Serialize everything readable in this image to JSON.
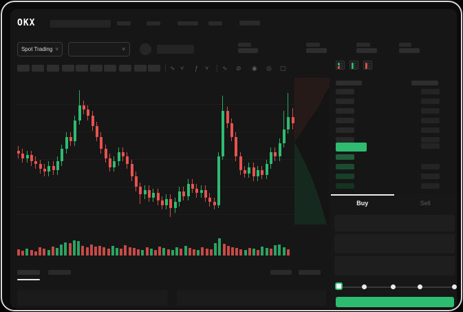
{
  "brand": {
    "logo_text": "OKX"
  },
  "subheader": {
    "market_selector_label": "Spot Trading",
    "chevron_glyph": "˅"
  },
  "toolbar": {
    "icons": [
      {
        "name": "candle-style-icon",
        "glyph": "∿"
      },
      {
        "name": "chevron-down-icon",
        "glyph": "˅"
      },
      {
        "name": "indicators-icon",
        "glyph": "ƒ"
      },
      {
        "name": "chevron-down-icon",
        "glyph": "˅"
      },
      {
        "name": "line-tool-icon",
        "glyph": "∿"
      },
      {
        "name": "compare-icon",
        "glyph": "⊘"
      },
      {
        "name": "camera-icon",
        "glyph": "◉"
      },
      {
        "name": "alerts-icon",
        "glyph": "◎"
      },
      {
        "name": "fullscreen-icon",
        "glyph": "▢"
      }
    ]
  },
  "order_book": {
    "ask_row_count": 6,
    "bid_row_count": 4,
    "bid_level_colors": [
      "#215f3c",
      "#1b4c31",
      "#184028",
      "#143321"
    ],
    "bid_right_bar_rows": [
      1,
      2,
      3
    ]
  },
  "order_panel": {
    "tabs": {
      "buy_label": "Buy",
      "sell_label": "Sell"
    },
    "slider": {
      "selected_index": 0,
      "mark_count": 5
    }
  },
  "colors": {
    "up_green": "#2ebd70",
    "down_red": "#e8534f",
    "cta_green": "#2ebd70",
    "last_price_highlight": "#2ebd70"
  },
  "chart_data": {
    "type": "candlestick",
    "title": "",
    "price_scale": [
      0,
      100
    ],
    "grid": true,
    "candles": [
      [
        52,
        55,
        47,
        50
      ],
      [
        50,
        53,
        44,
        47
      ],
      [
        47,
        52,
        44,
        49
      ],
      [
        49,
        52,
        42,
        45
      ],
      [
        45,
        48,
        40,
        43
      ],
      [
        43,
        46,
        37,
        40
      ],
      [
        40,
        43,
        35,
        38
      ],
      [
        38,
        45,
        35,
        42
      ],
      [
        42,
        45,
        36,
        39
      ],
      [
        39,
        48,
        36,
        45
      ],
      [
        45,
        56,
        42,
        53
      ],
      [
        53,
        64,
        50,
        61
      ],
      [
        61,
        64,
        55,
        58
      ],
      [
        58,
        75,
        55,
        72
      ],
      [
        72,
        92,
        69,
        82
      ],
      [
        82,
        85,
        76,
        79
      ],
      [
        79,
        82,
        72,
        75
      ],
      [
        75,
        78,
        65,
        68
      ],
      [
        68,
        71,
        58,
        61
      ],
      [
        61,
        64,
        50,
        53
      ],
      [
        53,
        56,
        44,
        47
      ],
      [
        47,
        50,
        38,
        41
      ],
      [
        41,
        48,
        38,
        45
      ],
      [
        45,
        54,
        42,
        51
      ],
      [
        51,
        54,
        45,
        48
      ],
      [
        48,
        51,
        40,
        43
      ],
      [
        43,
        46,
        32,
        35
      ],
      [
        35,
        38,
        25,
        28
      ],
      [
        28,
        31,
        17,
        23
      ],
      [
        23,
        29,
        20,
        26
      ],
      [
        26,
        29,
        18,
        21
      ],
      [
        21,
        27,
        18,
        24
      ],
      [
        24,
        27,
        16,
        19
      ],
      [
        19,
        22,
        13,
        16
      ],
      [
        16,
        23,
        13,
        20
      ],
      [
        20,
        23,
        8,
        14
      ],
      [
        14,
        21,
        11,
        18
      ],
      [
        18,
        28,
        15,
        25
      ],
      [
        25,
        28,
        19,
        22
      ],
      [
        22,
        33,
        19,
        30
      ],
      [
        30,
        33,
        24,
        27
      ],
      [
        27,
        30,
        21,
        24
      ],
      [
        24,
        29,
        21,
        26
      ],
      [
        26,
        29,
        18,
        21
      ],
      [
        21,
        24,
        15,
        18
      ],
      [
        18,
        21,
        13,
        16
      ],
      [
        16,
        51,
        14,
        48
      ],
      [
        48,
        88,
        46,
        78
      ],
      [
        78,
        81,
        67,
        70
      ],
      [
        70,
        73,
        58,
        61
      ],
      [
        61,
        64,
        45,
        48
      ],
      [
        48,
        51,
        36,
        39
      ],
      [
        39,
        42,
        34,
        37
      ],
      [
        37,
        44,
        34,
        41
      ],
      [
        41,
        44,
        32,
        35
      ],
      [
        35,
        42,
        32,
        39
      ],
      [
        39,
        42,
        33,
        36
      ],
      [
        36,
        46,
        33,
        43
      ],
      [
        43,
        54,
        40,
        51
      ],
      [
        51,
        54,
        45,
        48
      ],
      [
        48,
        60,
        45,
        57
      ],
      [
        57,
        78,
        54,
        66
      ],
      [
        66,
        90,
        63,
        74
      ],
      [
        74,
        80,
        66,
        70
      ]
    ],
    "volume": [
      35,
      28,
      40,
      30,
      25,
      45,
      38,
      30,
      50,
      42,
      60,
      75,
      70,
      85,
      80,
      55,
      45,
      60,
      50,
      55,
      48,
      40,
      52,
      44,
      38,
      56,
      48,
      42,
      35,
      30,
      45,
      38,
      32,
      50,
      42,
      36,
      30,
      46,
      38,
      55,
      42,
      35,
      30,
      48,
      40,
      34,
      70,
      95,
      65,
      55,
      48,
      42,
      36,
      30,
      44,
      38,
      32,
      50,
      44,
      38,
      56,
      62,
      48,
      35
    ]
  }
}
